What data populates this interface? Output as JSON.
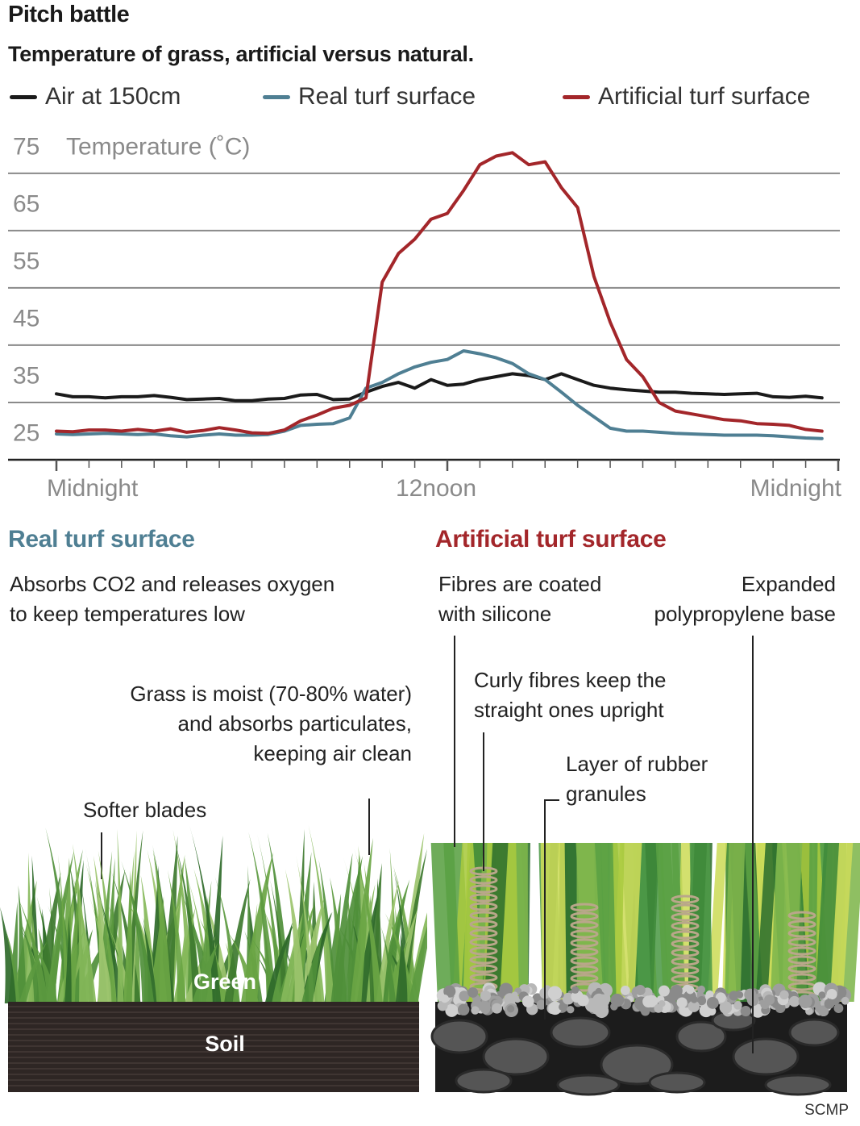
{
  "header": {
    "title": "Pitch battle",
    "subtitle": "Temperature of grass, artificial versus natural."
  },
  "legend": [
    {
      "label": "Air at 150cm",
      "color": "#1a1a1a"
    },
    {
      "label": "Real turf surface",
      "color": "#4f7f93"
    },
    {
      "label": "Artificial turf surface",
      "color": "#a3262a"
    }
  ],
  "chart_data": {
    "type": "line",
    "title": "Pitch battle",
    "subtitle": "Temperature of grass, artificial versus natural.",
    "ylabel": "Temperature (˚C)",
    "ylim": [
      20,
      78
    ],
    "yticks": [
      75,
      65,
      55,
      45,
      35,
      25
    ],
    "xlim": [
      0,
      24
    ],
    "xtick_labels": [
      {
        "x": 0,
        "label": "Midnight"
      },
      {
        "x": 12,
        "label": "12noon"
      },
      {
        "x": 24,
        "label": "Midnight"
      }
    ],
    "minor_tick_interval_hours": 1,
    "grid": true,
    "legend_position": "top",
    "series": [
      {
        "name": "Air at 150cm",
        "color": "#1a1a1a",
        "x": [
          0,
          0.5,
          1,
          1.5,
          2,
          2.5,
          3,
          3.5,
          4,
          4.5,
          5,
          5.5,
          6,
          6.5,
          7,
          7.5,
          8,
          8.5,
          9,
          9.5,
          10,
          10.5,
          11,
          11.5,
          12,
          12.5,
          13,
          13.5,
          14,
          14.5,
          15,
          15.5,
          16,
          16.5,
          17,
          17.5,
          18,
          18.5,
          19,
          19.5,
          20,
          20.5,
          21,
          21.5,
          22,
          22.5,
          23,
          23.5
        ],
        "values": [
          31.5,
          31,
          31,
          30.8,
          31,
          31,
          31.2,
          30.9,
          30.5,
          30.6,
          30.7,
          30.3,
          30.3,
          30.6,
          30.7,
          31.3,
          31.4,
          30.5,
          30.6,
          31.8,
          32.8,
          33.5,
          32.5,
          34,
          33,
          33.2,
          34,
          34.5,
          35,
          34.7,
          34,
          35,
          34,
          33,
          32.5,
          32.2,
          32,
          31.8,
          31.8,
          31.6,
          31.5,
          31.4,
          31.5,
          31.6,
          31,
          30.9,
          31.1,
          30.8
        ]
      },
      {
        "name": "Real turf surface",
        "color": "#4f7f93",
        "x": [
          0,
          0.5,
          1,
          1.5,
          2,
          2.5,
          3,
          3.5,
          4,
          4.5,
          5,
          5.5,
          6,
          6.5,
          7,
          7.5,
          8,
          8.5,
          9,
          9.5,
          10,
          10.5,
          11,
          11.5,
          12,
          12.5,
          13,
          13.5,
          14,
          14.5,
          15,
          15.5,
          16,
          16.5,
          17,
          17.5,
          18,
          18.5,
          19,
          19.5,
          20,
          20.5,
          21,
          21.5,
          22,
          22.5,
          23,
          23.5
        ],
        "values": [
          24.5,
          24.4,
          24.5,
          24.6,
          24.5,
          24.4,
          24.5,
          24.2,
          24,
          24.3,
          24.5,
          24.3,
          24.3,
          24.4,
          25,
          26,
          26.2,
          26.3,
          27.3,
          32.5,
          33.5,
          35,
          36.2,
          37,
          37.5,
          39,
          38.5,
          37.8,
          36.8,
          35,
          34,
          31.8,
          29.5,
          27.5,
          25.5,
          25,
          25,
          24.8,
          24.6,
          24.5,
          24.4,
          24.3,
          24.3,
          24.3,
          24.2,
          24,
          23.8,
          23.7
        ]
      },
      {
        "name": "Artificial turf surface",
        "color": "#a3262a",
        "x": [
          0,
          0.5,
          1,
          1.5,
          2,
          2.5,
          3,
          3.5,
          4,
          4.5,
          5,
          5.5,
          6,
          6.5,
          7,
          7.5,
          8,
          8.5,
          9,
          9.5,
          10,
          10.5,
          11,
          11.5,
          12,
          12.5,
          13,
          13.5,
          14,
          14.5,
          15,
          15.5,
          16,
          16.5,
          17,
          17.5,
          18,
          18.5,
          19,
          19.5,
          20,
          20.5,
          21,
          21.5,
          22,
          22.5,
          23,
          23.5
        ],
        "values": [
          25,
          24.9,
          25.2,
          25.2,
          25,
          25.3,
          25,
          25.4,
          24.8,
          25.1,
          25.6,
          25.2,
          24.7,
          24.6,
          25.2,
          26.8,
          27.8,
          29,
          29.5,
          30.8,
          51,
          56,
          58.5,
          62,
          63,
          67,
          71.5,
          73,
          73.6,
          71.5,
          72,
          67.5,
          64,
          52,
          44,
          37.5,
          34.5,
          30,
          28.5,
          28,
          27.5,
          27,
          26.8,
          26.3,
          26.2,
          26,
          25.3,
          25
        ]
      }
    ]
  },
  "sections": {
    "real": {
      "title": "Real turf surface",
      "intro_lines": [
        "Absorbs CO2 and releases oxygen",
        "to keep temperatures low"
      ],
      "moist_lines": [
        "Grass is moist (70-80% water)",
        "and absorbs particulates,",
        "keeping air clean"
      ],
      "blades": "Softer blades",
      "green_label": "Green",
      "soil_label": "Soil"
    },
    "artificial": {
      "title": "Artificial turf surface",
      "fibres_lines": [
        "Fibres are coated",
        "with silicone"
      ],
      "base_lines": [
        "Expanded",
        "polypropylene base"
      ],
      "curly_lines": [
        "Curly fibres keep the",
        "straight ones upright"
      ],
      "rubber_lines": [
        "Layer of rubber",
        "granules"
      ]
    }
  },
  "colors": {
    "real_accent": "#4f7f93",
    "artificial_accent": "#a3262a",
    "grid": "#888888",
    "soil": "#2e2624",
    "base_black": "#1c1c1c"
  },
  "source": "SCMP"
}
